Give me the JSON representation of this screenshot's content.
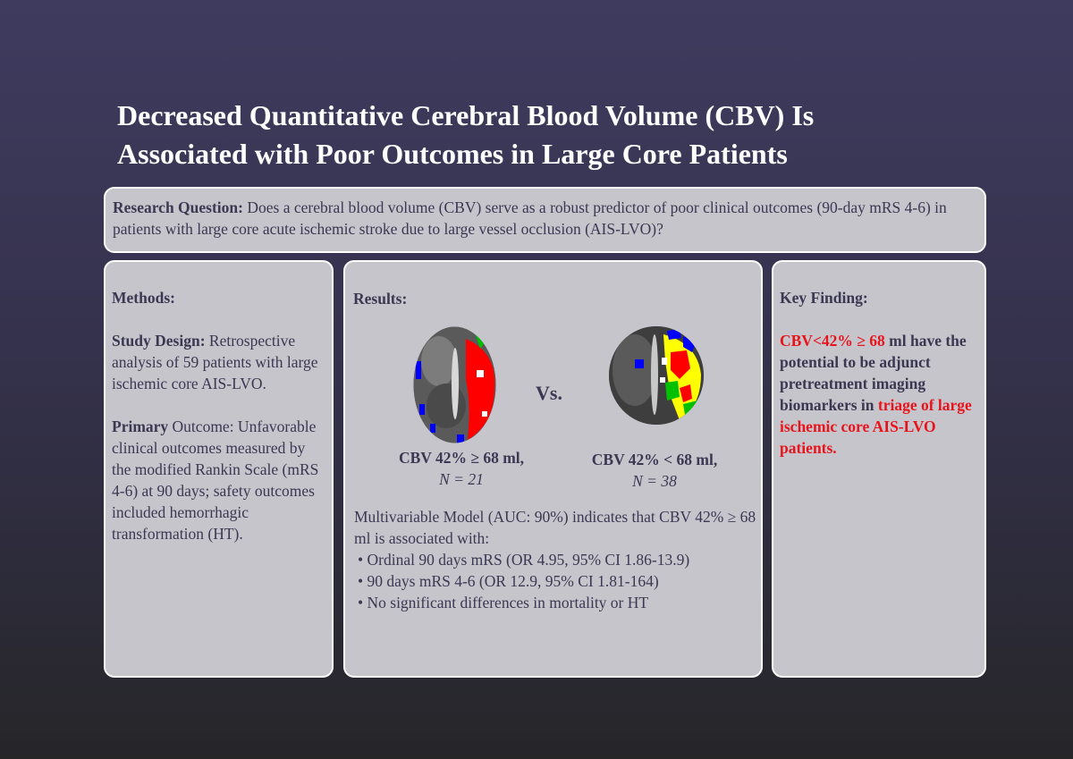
{
  "title": {
    "line1": "Decreased Quantitative Cerebral Blood Volume (CBV) Is",
    "line2": "Associated with Poor Outcomes in Large Core Patients"
  },
  "research_question": {
    "label": "Research Question:",
    "text": " Does a cerebral blood volume (CBV) serve as a robust predictor of poor clinical outcomes (90-day mRS 4-6) in patients with large core acute ischemic stroke due to large vessel occlusion (AIS-LVO)?"
  },
  "methods": {
    "heading": "Methods:",
    "design_label": "Study Design:",
    "design_text": " Retrospective analysis of 59 patients with large ischemic core AIS-LVO.",
    "primary_label": "Primary",
    "primary_text": " Outcome: Unfavorable clinical outcomes measured by the modified Rankin Scale (mRS 4-6) at 90 days; safety outcomes included hemorrhagic transformation (HT)."
  },
  "results": {
    "heading": "Results:",
    "vs": "Vs.",
    "group1_label": "CBV 42% ≥ 68 ml,",
    "group1_n": "N = 21",
    "group2_label": "CBV 42% < 68 ml,",
    "group2_n": "N = 38",
    "model_text": "Multivariable Model (AUC: 90%) indicates that CBV 42% ≥ 68 ml is associated with:",
    "bullets": [
      "• Ordinal 90 days mRS (OR 4.95, 95% CI 1.86-13.9)",
      "• 90 days mRS 4-6 (OR 12.9, 95% CI 1.81-164)",
      "• No significant differences in mortality or HT"
    ]
  },
  "key_finding": {
    "heading": "Key Finding:",
    "red1": "CBV<42% ≥ 68",
    "dark1": " ml have the potential to be adjunct pretreatment imaging biomarkers in ",
    "red2": "triage of large ischemic core AIS-LVO patients."
  },
  "colors": {
    "background_top": "#3f3b5f",
    "panel": "#c6c5cc",
    "text": "#3b3852",
    "highlight": "#e8141c"
  }
}
